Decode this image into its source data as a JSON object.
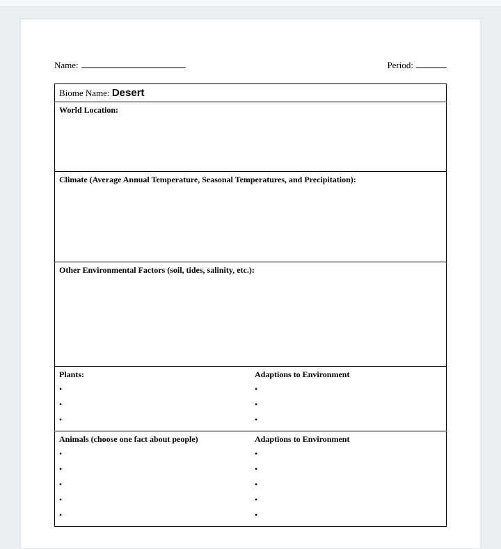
{
  "header": {
    "name_label": "Name:",
    "period_label": "Period:"
  },
  "biome": {
    "label": "Biome Name:",
    "value": "Desert"
  },
  "sections": {
    "world_location": "World Location:",
    "climate": "Climate (Average Annual Temperature, Seasonal Temperatures, and Precipitation):",
    "other_env": "Other Environmental Factors (soil, tides, salinity, etc.):",
    "plants": "Plants:",
    "plants_adapt": "Adaptions to Environment",
    "animals": "Animals (choose one fact about people)",
    "animals_adapt": "Adaptions to Environment"
  },
  "bullets": {
    "plants_left": [
      "•",
      "•",
      "•"
    ],
    "plants_right": [
      "•",
      "•",
      "•"
    ],
    "animals_left": [
      "•",
      "•",
      "•",
      "•",
      "•"
    ],
    "animals_right": [
      "•",
      "•",
      "•",
      "•",
      "•"
    ]
  },
  "style": {
    "page_bg": "#ffffff",
    "outer_bg": "#eceff1",
    "border_color": "#000000",
    "font_family": "Times New Roman"
  }
}
